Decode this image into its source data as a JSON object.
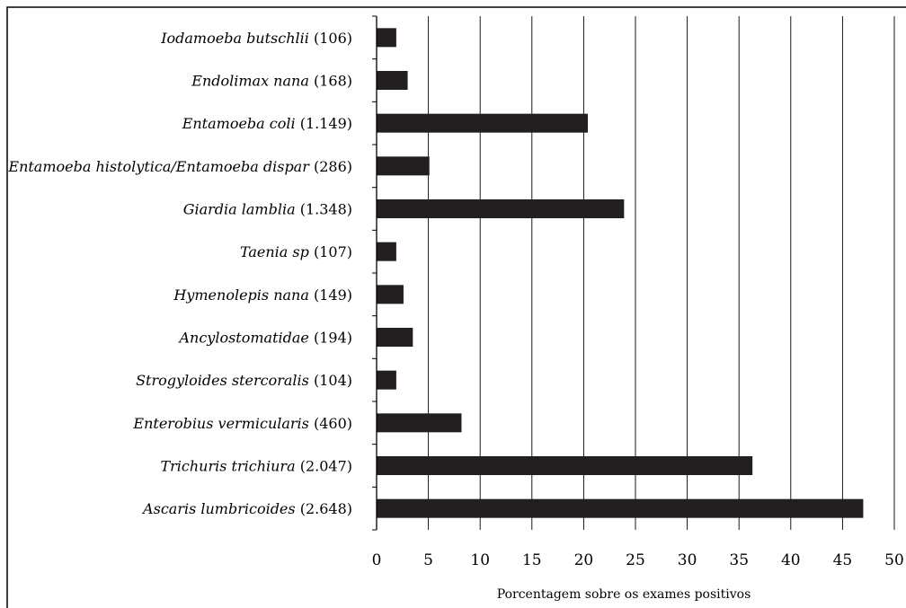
{
  "chart_data": {
    "type": "bar",
    "orientation": "horizontal",
    "categories": [
      {
        "species": "Iodamoeba butschlii",
        "count": "(106)"
      },
      {
        "species": "Endolimax nana",
        "count": "(168)"
      },
      {
        "species": "Entamoeba coli",
        "count": "(1.149)"
      },
      {
        "species": "Entamoeba histolytica/Entamoeba dispar",
        "count": "(286)"
      },
      {
        "species": "Giardia lamblia",
        "count": "(1.348)"
      },
      {
        "species": "Taenia sp",
        "count": "(107)"
      },
      {
        "species": "Hymenolepis nana",
        "count": "(149)"
      },
      {
        "species": "Ancylostomatidae",
        "count": "(194)"
      },
      {
        "species": "Strogyloides stercoralis",
        "count": "(104)"
      },
      {
        "species": "Enterobius vermicularis",
        "count": "(460)"
      },
      {
        "species": "Trichuris trichiura",
        "count": "(2.047)"
      },
      {
        "species": "Ascaris lumbricoides",
        "count": "(2.648)"
      }
    ],
    "values": [
      1.9,
      3.0,
      20.4,
      5.1,
      23.9,
      1.9,
      2.6,
      3.5,
      1.9,
      8.2,
      36.3,
      47.0
    ],
    "xlabel": "Porcentagem sobre os exames positivos",
    "xlim": [
      0,
      50
    ],
    "xticks": [
      "0",
      "5",
      "10",
      "15",
      "20",
      "25",
      "30",
      "35",
      "40",
      "45",
      "50"
    ],
    "grid": "vertical",
    "bar_color": "#231f20"
  }
}
